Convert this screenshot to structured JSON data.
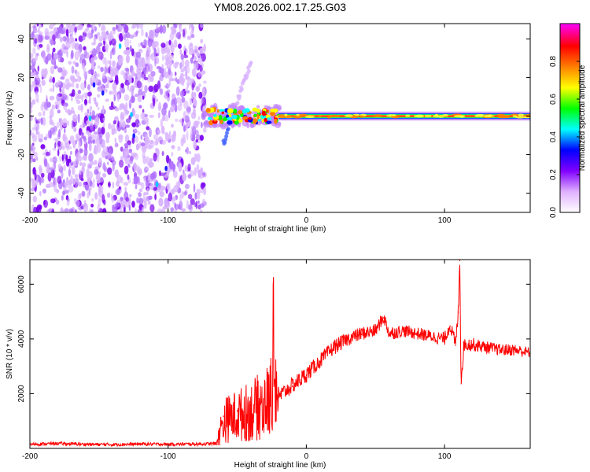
{
  "figure": {
    "title": "YM08.2026.002.17.25.G03"
  },
  "chart_data": [
    {
      "type": "heatmap",
      "title": "YM08.2026.002.17.25.G03",
      "xlabel": "Height of straight line (km)",
      "ylabel": "Frequency (Hz)",
      "xlim": [
        -200,
        162
      ],
      "ylim": [
        -50,
        48
      ],
      "xticks": [
        -200,
        -100,
        0,
        100
      ],
      "yticks": [
        -40,
        -20,
        0,
        20,
        40
      ],
      "grid": false,
      "colorbar": {
        "label": "Normalized spectral amplitude",
        "range": [
          0,
          1
        ],
        "ticks": [
          0.0,
          0.2,
          0.4,
          0.6,
          0.8
        ],
        "tick_labels": [
          "0.0",
          "0.2",
          "0.4",
          "0.6",
          "0.8"
        ],
        "colormap": [
          "#ffffff",
          "#e0b0ff",
          "#8000ff",
          "#0000ff",
          "#00ffff",
          "#00ff00",
          "#ffff00",
          "#ff8000",
          "#ff0000",
          "#ff00ff"
        ]
      },
      "regions": [
        {
          "name": "noise",
          "x_range": [
            -200,
            -73
          ],
          "freq_range": [
            -50,
            48
          ],
          "amplitude": "0.05-0.3"
        },
        {
          "name": "tone onset",
          "x_range": [
            -73,
            -20
          ],
          "freq_center": 0,
          "freq_spread": 5,
          "amplitude": "0.3-0.9"
        },
        {
          "name": "stable tone",
          "x_range": [
            -20,
            162
          ],
          "freq_center": 0,
          "amplitude": "0.9-1.0"
        },
        {
          "name": "side branch",
          "x_range": [
            -60,
            -40
          ],
          "freq_start": -14,
          "freq_end": 28
        }
      ]
    },
    {
      "type": "line",
      "title": "",
      "xlabel": "Height of straight line (km)",
      "ylabel": "SNR (10 * v/v)",
      "xlim": [
        -200,
        162
      ],
      "ylim": [
        0,
        6900
      ],
      "xticks": [
        -200,
        -100,
        0,
        100
      ],
      "yticks": [
        2000,
        4000,
        6000
      ],
      "grid": false,
      "series": [
        {
          "name": "SNR",
          "color": "#ff0000",
          "x": [
            -200,
            -180,
            -160,
            -140,
            -120,
            -100,
            -80,
            -65,
            -60,
            -50,
            -40,
            -30,
            -26,
            -24,
            -20,
            -10,
            0,
            10,
            20,
            30,
            40,
            50,
            56,
            60,
            70,
            80,
            90,
            100,
            104,
            108,
            110,
            111,
            112,
            114,
            120,
            130,
            140,
            150,
            162
          ],
          "values": [
            150,
            180,
            150,
            140,
            160,
            150,
            160,
            170,
            1200,
            1400,
            1600,
            1900,
            2100,
            4200,
            1900,
            2300,
            2700,
            3200,
            3700,
            4000,
            4200,
            4300,
            4800,
            4200,
            4300,
            4200,
            4100,
            4000,
            4500,
            3800,
            5000,
            6900,
            2400,
            3800,
            3800,
            3700,
            3600,
            3600,
            3500
          ],
          "noise_amplitude": [
            60,
            60,
            60,
            60,
            60,
            60,
            60,
            60,
            500,
            500,
            550,
            600,
            600,
            300,
            300,
            300,
            300,
            280,
            280,
            260,
            250,
            250,
            250,
            250,
            230,
            230,
            230,
            250,
            250,
            260,
            300,
            0,
            250,
            260,
            250,
            220,
            220,
            220,
            200
          ]
        }
      ]
    }
  ]
}
